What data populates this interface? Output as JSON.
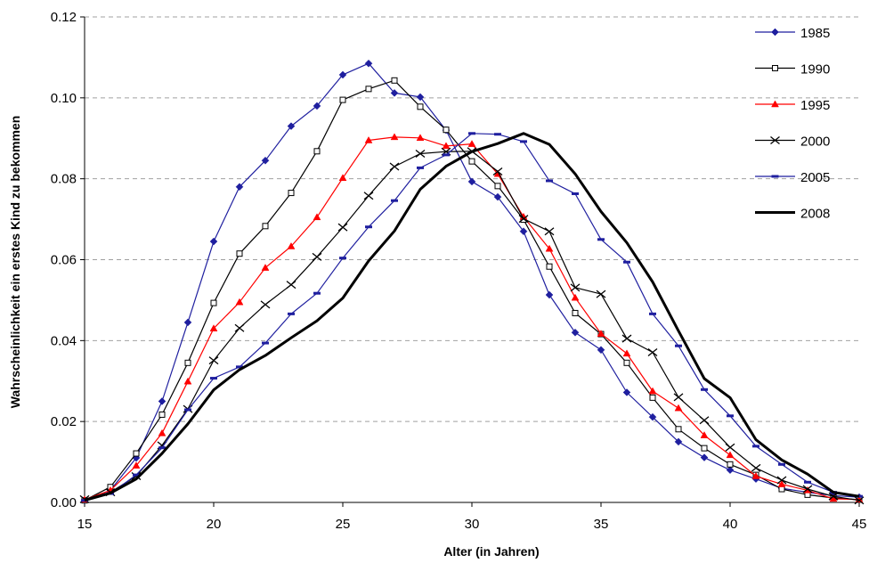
{
  "chart_data": {
    "type": "line",
    "title": "",
    "xlabel": "Alter (in Jahren)",
    "ylabel": "Wahrscheinlichkeit ein erstes Kind zu bekommen",
    "xlim": [
      15,
      45
    ],
    "ylim": [
      0,
      0.12
    ],
    "xticks": [
      15,
      20,
      25,
      30,
      35,
      40,
      45
    ],
    "yticks": [
      "0.00",
      "0.02",
      "0.04",
      "0.06",
      "0.08",
      "0.10",
      "0.12"
    ],
    "grid": "horizontal dashed",
    "legend_position": "top-right",
    "x": [
      15,
      16,
      17,
      18,
      19,
      20,
      21,
      22,
      23,
      24,
      25,
      26,
      27,
      28,
      29,
      30,
      31,
      32,
      33,
      34,
      35,
      36,
      37,
      38,
      39,
      40,
      41,
      42,
      43,
      44,
      45
    ],
    "series": [
      {
        "name": "1985",
        "color": "#1f1f9f",
        "marker": "diamond",
        "line_width": 1.2,
        "values": [
          0.0005,
          0.003,
          0.011,
          0.025,
          0.0445,
          0.0645,
          0.078,
          0.0845,
          0.093,
          0.098,
          0.1057,
          0.1085,
          0.1012,
          0.1002,
          0.092,
          0.0793,
          0.0755,
          0.067,
          0.0513,
          0.042,
          0.0377,
          0.0272,
          0.0211,
          0.015,
          0.0111,
          0.008,
          0.0058,
          0.0035,
          0.0025,
          0.0017,
          0.0013
        ]
      },
      {
        "name": "1990",
        "color": "#000000",
        "marker": "square",
        "line_width": 1.2,
        "values": [
          0.0005,
          0.0038,
          0.0121,
          0.0217,
          0.0345,
          0.0493,
          0.0615,
          0.0683,
          0.0765,
          0.0868,
          0.0995,
          0.1022,
          0.1043,
          0.0978,
          0.0921,
          0.0843,
          0.0782,
          0.0699,
          0.0583,
          0.0468,
          0.0416,
          0.0345,
          0.0259,
          0.0181,
          0.0134,
          0.0094,
          0.0068,
          0.0033,
          0.0019,
          0.0011,
          0.0007
        ]
      },
      {
        "name": "1995",
        "color": "#ff0000",
        "marker": "triangle",
        "line_width": 1.2,
        "values": [
          0.0007,
          0.003,
          0.0091,
          0.0171,
          0.0299,
          0.043,
          0.0495,
          0.058,
          0.0633,
          0.0705,
          0.0802,
          0.0895,
          0.0903,
          0.0901,
          0.0881,
          0.0886,
          0.0812,
          0.0706,
          0.0627,
          0.0506,
          0.0417,
          0.0368,
          0.0275,
          0.0233,
          0.0166,
          0.0117,
          0.0065,
          0.0045,
          0.003,
          0.0009,
          0.0007
        ]
      },
      {
        "name": "2000",
        "color": "#000000",
        "marker": "x",
        "line_width": 1.2,
        "values": [
          0.0008,
          0.0025,
          0.0065,
          0.0141,
          0.0231,
          0.0351,
          0.0431,
          0.0489,
          0.0538,
          0.0607,
          0.068,
          0.0758,
          0.083,
          0.0862,
          0.0867,
          0.0868,
          0.0818,
          0.0701,
          0.067,
          0.0531,
          0.0515,
          0.0405,
          0.0371,
          0.026,
          0.0203,
          0.0136,
          0.0085,
          0.0055,
          0.0033,
          0.0015,
          0.0005
        ]
      },
      {
        "name": "2005",
        "color": "#1f1f9f",
        "marker": "dash",
        "line_width": 1.2,
        "values": [
          0.0005,
          0.0022,
          0.0068,
          0.0135,
          0.0229,
          0.0307,
          0.0335,
          0.0394,
          0.0466,
          0.0517,
          0.0604,
          0.0681,
          0.0746,
          0.0827,
          0.0859,
          0.0912,
          0.091,
          0.0892,
          0.0795,
          0.0763,
          0.065,
          0.0594,
          0.0466,
          0.0387,
          0.0279,
          0.0214,
          0.0139,
          0.0094,
          0.005,
          0.0025,
          0.0015
        ]
      },
      {
        "name": "2008",
        "color": "#000000",
        "marker": "none",
        "line_width": 3,
        "values": [
          0.0005,
          0.0023,
          0.0058,
          0.0121,
          0.0194,
          0.0278,
          0.0328,
          0.0363,
          0.0407,
          0.0449,
          0.0505,
          0.0597,
          0.0671,
          0.0774,
          0.0831,
          0.0867,
          0.0887,
          0.0912,
          0.0885,
          0.0812,
          0.0719,
          0.0642,
          0.0545,
          0.0424,
          0.0306,
          0.0259,
          0.0155,
          0.0105,
          0.007,
          0.0025,
          0.0015
        ]
      }
    ]
  }
}
